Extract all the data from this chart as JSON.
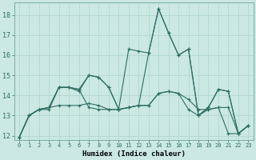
{
  "title": "",
  "xlabel": "Humidex (Indice chaleur)",
  "ylabel": "",
  "background_color": "#cbe8e3",
  "grid_color": "#b0d8d0",
  "line_color": "#2d6e63",
  "xlim_min": -0.5,
  "xlim_max": 23.5,
  "ylim_min": 11.8,
  "ylim_max": 18.6,
  "yticks": [
    12,
    13,
    14,
    15,
    16,
    17,
    18
  ],
  "xticks": [
    0,
    1,
    2,
    3,
    4,
    5,
    6,
    7,
    8,
    9,
    10,
    11,
    12,
    13,
    14,
    15,
    16,
    17,
    18,
    19,
    20,
    21,
    22,
    23
  ],
  "series": [
    [
      11.9,
      13.0,
      13.3,
      13.3,
      14.4,
      14.4,
      14.2,
      15.0,
      14.9,
      14.4,
      13.3,
      16.3,
      16.2,
      16.1,
      18.3,
      17.1,
      16.0,
      16.3,
      13.0,
      13.4,
      14.3,
      14.2,
      12.1,
      12.5
    ],
    [
      11.9,
      13.0,
      13.3,
      13.4,
      13.5,
      13.5,
      13.5,
      13.6,
      13.5,
      13.3,
      13.3,
      13.4,
      13.5,
      13.5,
      14.1,
      14.2,
      14.1,
      13.8,
      13.3,
      13.3,
      13.4,
      13.4,
      12.1,
      12.5
    ],
    [
      11.9,
      13.0,
      13.3,
      13.4,
      14.4,
      14.4,
      14.3,
      13.4,
      13.3,
      13.3,
      13.3,
      13.4,
      13.5,
      13.5,
      14.1,
      14.2,
      14.1,
      13.3,
      13.0,
      13.3,
      13.4,
      12.1,
      12.1,
      12.5
    ],
    [
      11.9,
      13.0,
      13.3,
      13.4,
      14.4,
      14.4,
      14.3,
      15.0,
      14.9,
      14.4,
      13.3,
      13.4,
      13.5,
      16.1,
      18.3,
      17.1,
      16.0,
      16.3,
      13.0,
      13.4,
      14.3,
      14.2,
      12.1,
      12.5
    ]
  ],
  "xlabel_fontsize": 6.5,
  "ytick_fontsize": 6.0,
  "xtick_fontsize": 5.0
}
